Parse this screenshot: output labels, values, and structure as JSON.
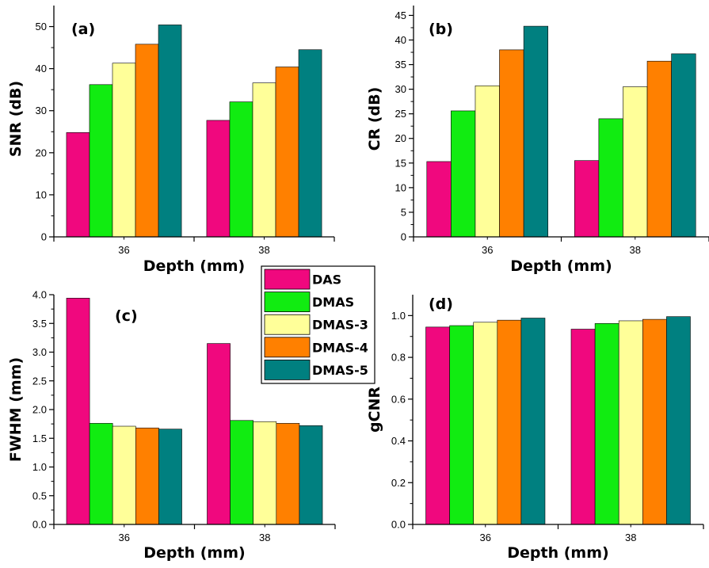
{
  "chart_data": [
    {
      "type": "bar",
      "panel_label": "(a)",
      "categories": [
        "36",
        "38"
      ],
      "xlabel": "Depth (mm)",
      "ylabel": "SNR (dB)",
      "ylim": [
        0,
        55
      ],
      "yticks": [
        0,
        10,
        20,
        30,
        40,
        50
      ],
      "ytick_labels": [
        "0",
        "10",
        "20",
        "30",
        "40",
        "50"
      ],
      "series": [
        {
          "name": "DAS",
          "values": [
            24.8,
            27.7
          ]
        },
        {
          "name": "DMAS",
          "values": [
            36.2,
            32.1
          ]
        },
        {
          "name": "DMAS-3",
          "values": [
            41.3,
            36.6
          ]
        },
        {
          "name": "DMAS-4",
          "values": [
            45.8,
            40.4
          ]
        },
        {
          "name": "DMAS-5",
          "values": [
            50.4,
            44.5
          ]
        }
      ]
    },
    {
      "type": "bar",
      "panel_label": "(b)",
      "categories": [
        "36",
        "38"
      ],
      "xlabel": "Depth (mm)",
      "ylabel": "CR (dB)",
      "ylim": [
        0,
        47
      ],
      "yticks": [
        0,
        5,
        10,
        15,
        20,
        25,
        30,
        35,
        40,
        45
      ],
      "ytick_labels": [
        "0",
        "5",
        "10",
        "15",
        "20",
        "25",
        "30",
        "35",
        "40",
        "45"
      ],
      "series": [
        {
          "name": "DAS",
          "values": [
            15.3,
            15.5
          ]
        },
        {
          "name": "DMAS",
          "values": [
            25.6,
            24.0
          ]
        },
        {
          "name": "DMAS-3",
          "values": [
            30.7,
            30.5
          ]
        },
        {
          "name": "DMAS-4",
          "values": [
            38.0,
            35.7
          ]
        },
        {
          "name": "DMAS-5",
          "values": [
            42.8,
            37.2
          ]
        }
      ]
    },
    {
      "type": "bar",
      "panel_label": "(c)",
      "categories": [
        "36",
        "38"
      ],
      "xlabel": "Depth (mm)",
      "ylabel": "FWHM (mm)",
      "ylim": [
        0,
        4.0
      ],
      "yticks": [
        0,
        0.5,
        1.0,
        1.5,
        2.0,
        2.5,
        3.0,
        3.5,
        4.0
      ],
      "ytick_labels": [
        "0.0",
        "0.5",
        "1.0",
        "1.5",
        "2.0",
        "2.5",
        "3.0",
        "3.5",
        "4.0"
      ],
      "series": [
        {
          "name": "DAS",
          "values": [
            3.94,
            3.15
          ]
        },
        {
          "name": "DMAS",
          "values": [
            1.76,
            1.81
          ]
        },
        {
          "name": "DMAS-3",
          "values": [
            1.71,
            1.79
          ]
        },
        {
          "name": "DMAS-4",
          "values": [
            1.68,
            1.76
          ]
        },
        {
          "name": "DMAS-5",
          "values": [
            1.66,
            1.72
          ]
        }
      ]
    },
    {
      "type": "bar",
      "panel_label": "(d)",
      "categories": [
        "36",
        "38"
      ],
      "xlabel": "Depth (mm)",
      "ylabel": "gCNR",
      "ylim": [
        0,
        1.1
      ],
      "yticks": [
        0,
        0.2,
        0.4,
        0.6,
        0.8,
        1.0
      ],
      "ytick_labels": [
        "0.0",
        "0.2",
        "0.4",
        "0.6",
        "0.8",
        "1.0"
      ],
      "series": [
        {
          "name": "DAS",
          "values": [
            0.945,
            0.935
          ]
        },
        {
          "name": "DMAS",
          "values": [
            0.952,
            0.962
          ]
        },
        {
          "name": "DMAS-3",
          "values": [
            0.968,
            0.975
          ]
        },
        {
          "name": "DMAS-4",
          "values": [
            0.978,
            0.982
          ]
        },
        {
          "name": "DMAS-5",
          "values": [
            0.988,
            0.995
          ]
        }
      ]
    }
  ],
  "legend": {
    "entries": [
      "DAS",
      "DMAS",
      "DMAS-3",
      "DMAS-4",
      "DMAS-5"
    ]
  },
  "colors": {
    "DAS": "#f0087e",
    "DMAS": "#11ec11",
    "DMAS-3": "#ffff99",
    "DMAS-4": "#ff8000",
    "DMAS-5": "#008080"
  }
}
